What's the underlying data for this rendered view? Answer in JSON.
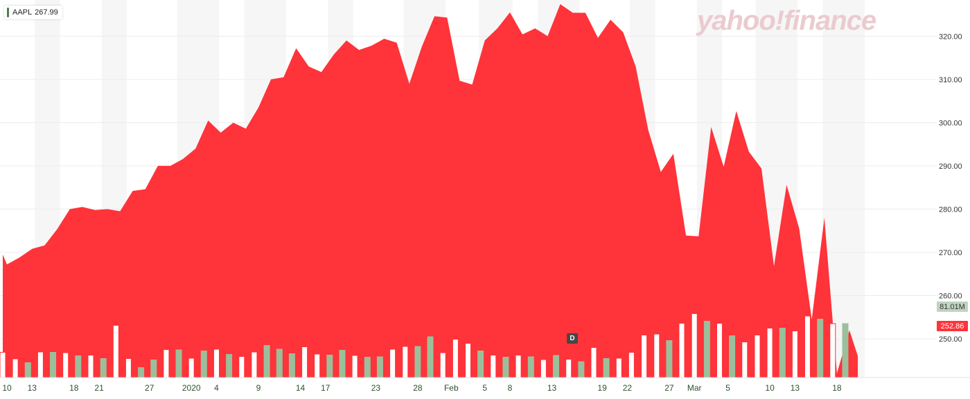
{
  "ticker": {
    "symbol": "AAPL",
    "value": "267.99"
  },
  "watermark": "yahoo!finance",
  "event_marker": "D",
  "tags": {
    "volume": "81.01M",
    "last_price": "252.86"
  },
  "colors": {
    "area": "#ff333a",
    "volume_up": "#9bbf9b",
    "volume_down": "#ffffff",
    "volume_stroke": "#ff333a",
    "grid": "#f2f2f2",
    "tick_text": "#333333",
    "x_text": "#2e4f2e"
  },
  "chart_data": {
    "type": "area",
    "title": "",
    "y_ticks": [
      "250.00",
      "260.00",
      "270.00",
      "280.00",
      "290.00",
      "300.00",
      "310.00",
      "320.00"
    ],
    "ylim": [
      241.4,
      327.4
    ],
    "x_labels": [
      {
        "label": "10",
        "day": 0
      },
      {
        "label": "13",
        "day": 3
      },
      {
        "label": "18",
        "day": 8
      },
      {
        "label": "21",
        "day": 11
      },
      {
        "label": "27",
        "day": 17
      },
      {
        "label": "2020",
        "day": 22
      },
      {
        "label": "4",
        "day": 25
      },
      {
        "label": "9",
        "day": 30
      },
      {
        "label": "14",
        "day": 35
      },
      {
        "label": "17",
        "day": 38
      },
      {
        "label": "23",
        "day": 44
      },
      {
        "label": "28",
        "day": 49
      },
      {
        "label": "Feb",
        "day": 53
      },
      {
        "label": "5",
        "day": 57
      },
      {
        "label": "8",
        "day": 60
      },
      {
        "label": "13",
        "day": 65
      },
      {
        "label": "19",
        "day": 71
      },
      {
        "label": "22",
        "day": 74
      },
      {
        "label": "27",
        "day": 79
      },
      {
        "label": "Mar",
        "day": 82
      },
      {
        "label": "5",
        "day": 86
      },
      {
        "label": "10",
        "day": 91
      },
      {
        "label": "13",
        "day": 94
      },
      {
        "label": "18",
        "day": 99
      }
    ],
    "price_points": [
      [
        -0.5,
        269.5
      ],
      [
        0,
        267.2
      ],
      [
        1.5,
        268.8
      ],
      [
        3,
        270.8
      ],
      [
        4.5,
        271.6
      ],
      [
        6,
        275.4
      ],
      [
        7.5,
        280.0
      ],
      [
        9,
        280.5
      ],
      [
        10.5,
        279.8
      ],
      [
        12,
        280.0
      ],
      [
        13.5,
        279.5
      ],
      [
        15,
        284.2
      ],
      [
        16.5,
        284.6
      ],
      [
        18,
        290.0
      ],
      [
        19.5,
        290.0
      ],
      [
        21,
        291.6
      ],
      [
        22.5,
        294.0
      ],
      [
        24,
        300.5
      ],
      [
        25.5,
        297.7
      ],
      [
        27,
        300.0
      ],
      [
        28.5,
        298.6
      ],
      [
        30,
        303.5
      ],
      [
        31.5,
        310.0
      ],
      [
        33,
        310.5
      ],
      [
        34.5,
        317.2
      ],
      [
        36,
        313.0
      ],
      [
        37.5,
        311.7
      ],
      [
        39,
        315.8
      ],
      [
        40.5,
        319.0
      ],
      [
        42,
        316.8
      ],
      [
        43.5,
        317.8
      ],
      [
        45,
        319.4
      ],
      [
        46.5,
        318.5
      ],
      [
        48,
        309.0
      ],
      [
        49.5,
        317.6
      ],
      [
        51,
        324.6
      ],
      [
        52.5,
        324.3
      ],
      [
        54,
        309.7
      ],
      [
        55.5,
        308.8
      ],
      [
        57,
        319.0
      ],
      [
        58.5,
        321.8
      ],
      [
        60,
        325.5
      ],
      [
        61.5,
        320.4
      ],
      [
        63,
        321.8
      ],
      [
        64.5,
        320.0
      ],
      [
        66,
        327.4
      ],
      [
        67.5,
        325.4
      ],
      [
        69,
        325.4
      ],
      [
        70.5,
        319.6
      ],
      [
        72,
        323.8
      ],
      [
        73.5,
        320.9
      ],
      [
        75,
        313.0
      ],
      [
        76.5,
        298.3
      ],
      [
        78,
        288.6
      ],
      [
        79.5,
        292.8
      ],
      [
        81,
        273.9
      ],
      [
        82.5,
        273.7
      ],
      [
        84,
        299.0
      ],
      [
        85.5,
        289.8
      ],
      [
        87,
        302.7
      ],
      [
        88.5,
        293.3
      ],
      [
        90,
        289.4
      ],
      [
        91.5,
        266.8
      ],
      [
        93,
        285.6
      ],
      [
        94.5,
        275.5
      ],
      [
        96,
        254.5
      ],
      [
        97.5,
        278.0
      ],
      [
        99,
        242.0
      ],
      [
        100.5,
        252.0
      ],
      [
        101.5,
        246.0
      ]
    ],
    "volume_ylim": [
      0,
      100
    ],
    "volume": [
      {
        "day": -0.5,
        "v": 36.5,
        "up": false
      },
      {
        "day": 1,
        "v": 27,
        "up": false
      },
      {
        "day": 2.5,
        "v": 21.5,
        "up": true
      },
      {
        "day": 4,
        "v": 37,
        "up": false
      },
      {
        "day": 5.5,
        "v": 36.5,
        "up": true
      },
      {
        "day": 7,
        "v": 36,
        "up": false
      },
      {
        "day": 8.5,
        "v": 31.5,
        "up": true
      },
      {
        "day": 10,
        "v": 32.5,
        "up": false
      },
      {
        "day": 11.5,
        "v": 27.5,
        "up": true
      },
      {
        "day": 13,
        "v": 75.5,
        "up": false
      },
      {
        "day": 14.5,
        "v": 27.5,
        "up": false
      },
      {
        "day": 16,
        "v": 14.5,
        "up": true
      },
      {
        "day": 17.5,
        "v": 25.5,
        "up": true
      },
      {
        "day": 19,
        "v": 40.5,
        "up": false
      },
      {
        "day": 20.5,
        "v": 40,
        "up": true
      },
      {
        "day": 22,
        "v": 28,
        "up": false
      },
      {
        "day": 23.5,
        "v": 38.5,
        "up": true
      },
      {
        "day": 25,
        "v": 41,
        "up": false
      },
      {
        "day": 26.5,
        "v": 33.5,
        "up": true
      },
      {
        "day": 28,
        "v": 30.5,
        "up": false
      },
      {
        "day": 29.5,
        "v": 37,
        "up": false
      },
      {
        "day": 31,
        "v": 46.5,
        "up": true
      },
      {
        "day": 32.5,
        "v": 41,
        "up": true
      },
      {
        "day": 34,
        "v": 34.5,
        "up": true
      },
      {
        "day": 35.5,
        "v": 44.5,
        "up": false
      },
      {
        "day": 37,
        "v": 34,
        "up": false
      },
      {
        "day": 38.5,
        "v": 32.5,
        "up": true
      },
      {
        "day": 40,
        "v": 39.5,
        "up": true
      },
      {
        "day": 41.5,
        "v": 32,
        "up": false
      },
      {
        "day": 43,
        "v": 29.5,
        "up": true
      },
      {
        "day": 44.5,
        "v": 30,
        "up": true
      },
      {
        "day": 46,
        "v": 41,
        "up": false
      },
      {
        "day": 47.5,
        "v": 45,
        "up": false
      },
      {
        "day": 49,
        "v": 45,
        "up": true
      },
      {
        "day": 50.5,
        "v": 59,
        "up": true
      },
      {
        "day": 52,
        "v": 36,
        "up": false
      },
      {
        "day": 53.5,
        "v": 55.5,
        "up": false
      },
      {
        "day": 55,
        "v": 49.5,
        "up": false
      },
      {
        "day": 56.5,
        "v": 38.5,
        "up": true
      },
      {
        "day": 58,
        "v": 32.5,
        "up": false
      },
      {
        "day": 59.5,
        "v": 29.5,
        "up": true
      },
      {
        "day": 61,
        "v": 32.5,
        "up": false
      },
      {
        "day": 62.5,
        "v": 30,
        "up": true
      },
      {
        "day": 64,
        "v": 26,
        "up": false
      },
      {
        "day": 65.5,
        "v": 32,
        "up": true
      },
      {
        "day": 67,
        "v": 26.5,
        "up": false
      },
      {
        "day": 68.5,
        "v": 23,
        "up": true
      },
      {
        "day": 70,
        "v": 43.5,
        "up": false
      },
      {
        "day": 71.5,
        "v": 27.5,
        "up": true
      },
      {
        "day": 73,
        "v": 28,
        "up": false
      },
      {
        "day": 74.5,
        "v": 36.5,
        "up": false
      },
      {
        "day": 76,
        "v": 61.5,
        "up": false
      },
      {
        "day": 77.5,
        "v": 63,
        "up": false
      },
      {
        "day": 79,
        "v": 53.5,
        "up": true
      },
      {
        "day": 80.5,
        "v": 78.5,
        "up": false
      },
      {
        "day": 82,
        "v": 92.5,
        "up": false
      },
      {
        "day": 83.5,
        "v": 81.5,
        "up": true
      },
      {
        "day": 85,
        "v": 78.5,
        "up": false
      },
      {
        "day": 86.5,
        "v": 60.5,
        "up": true
      },
      {
        "day": 88,
        "v": 51.5,
        "up": false
      },
      {
        "day": 89.5,
        "v": 61.5,
        "up": false
      },
      {
        "day": 91,
        "v": 71.5,
        "up": false
      },
      {
        "day": 92.5,
        "v": 71.5,
        "up": true
      },
      {
        "day": 94,
        "v": 67.5,
        "up": false
      },
      {
        "day": 95.5,
        "v": 89,
        "up": false
      },
      {
        "day": 97,
        "v": 84.5,
        "up": true
      },
      {
        "day": 98.5,
        "v": 78,
        "up": false
      },
      {
        "day": 100,
        "v": 78,
        "up": true
      }
    ]
  }
}
